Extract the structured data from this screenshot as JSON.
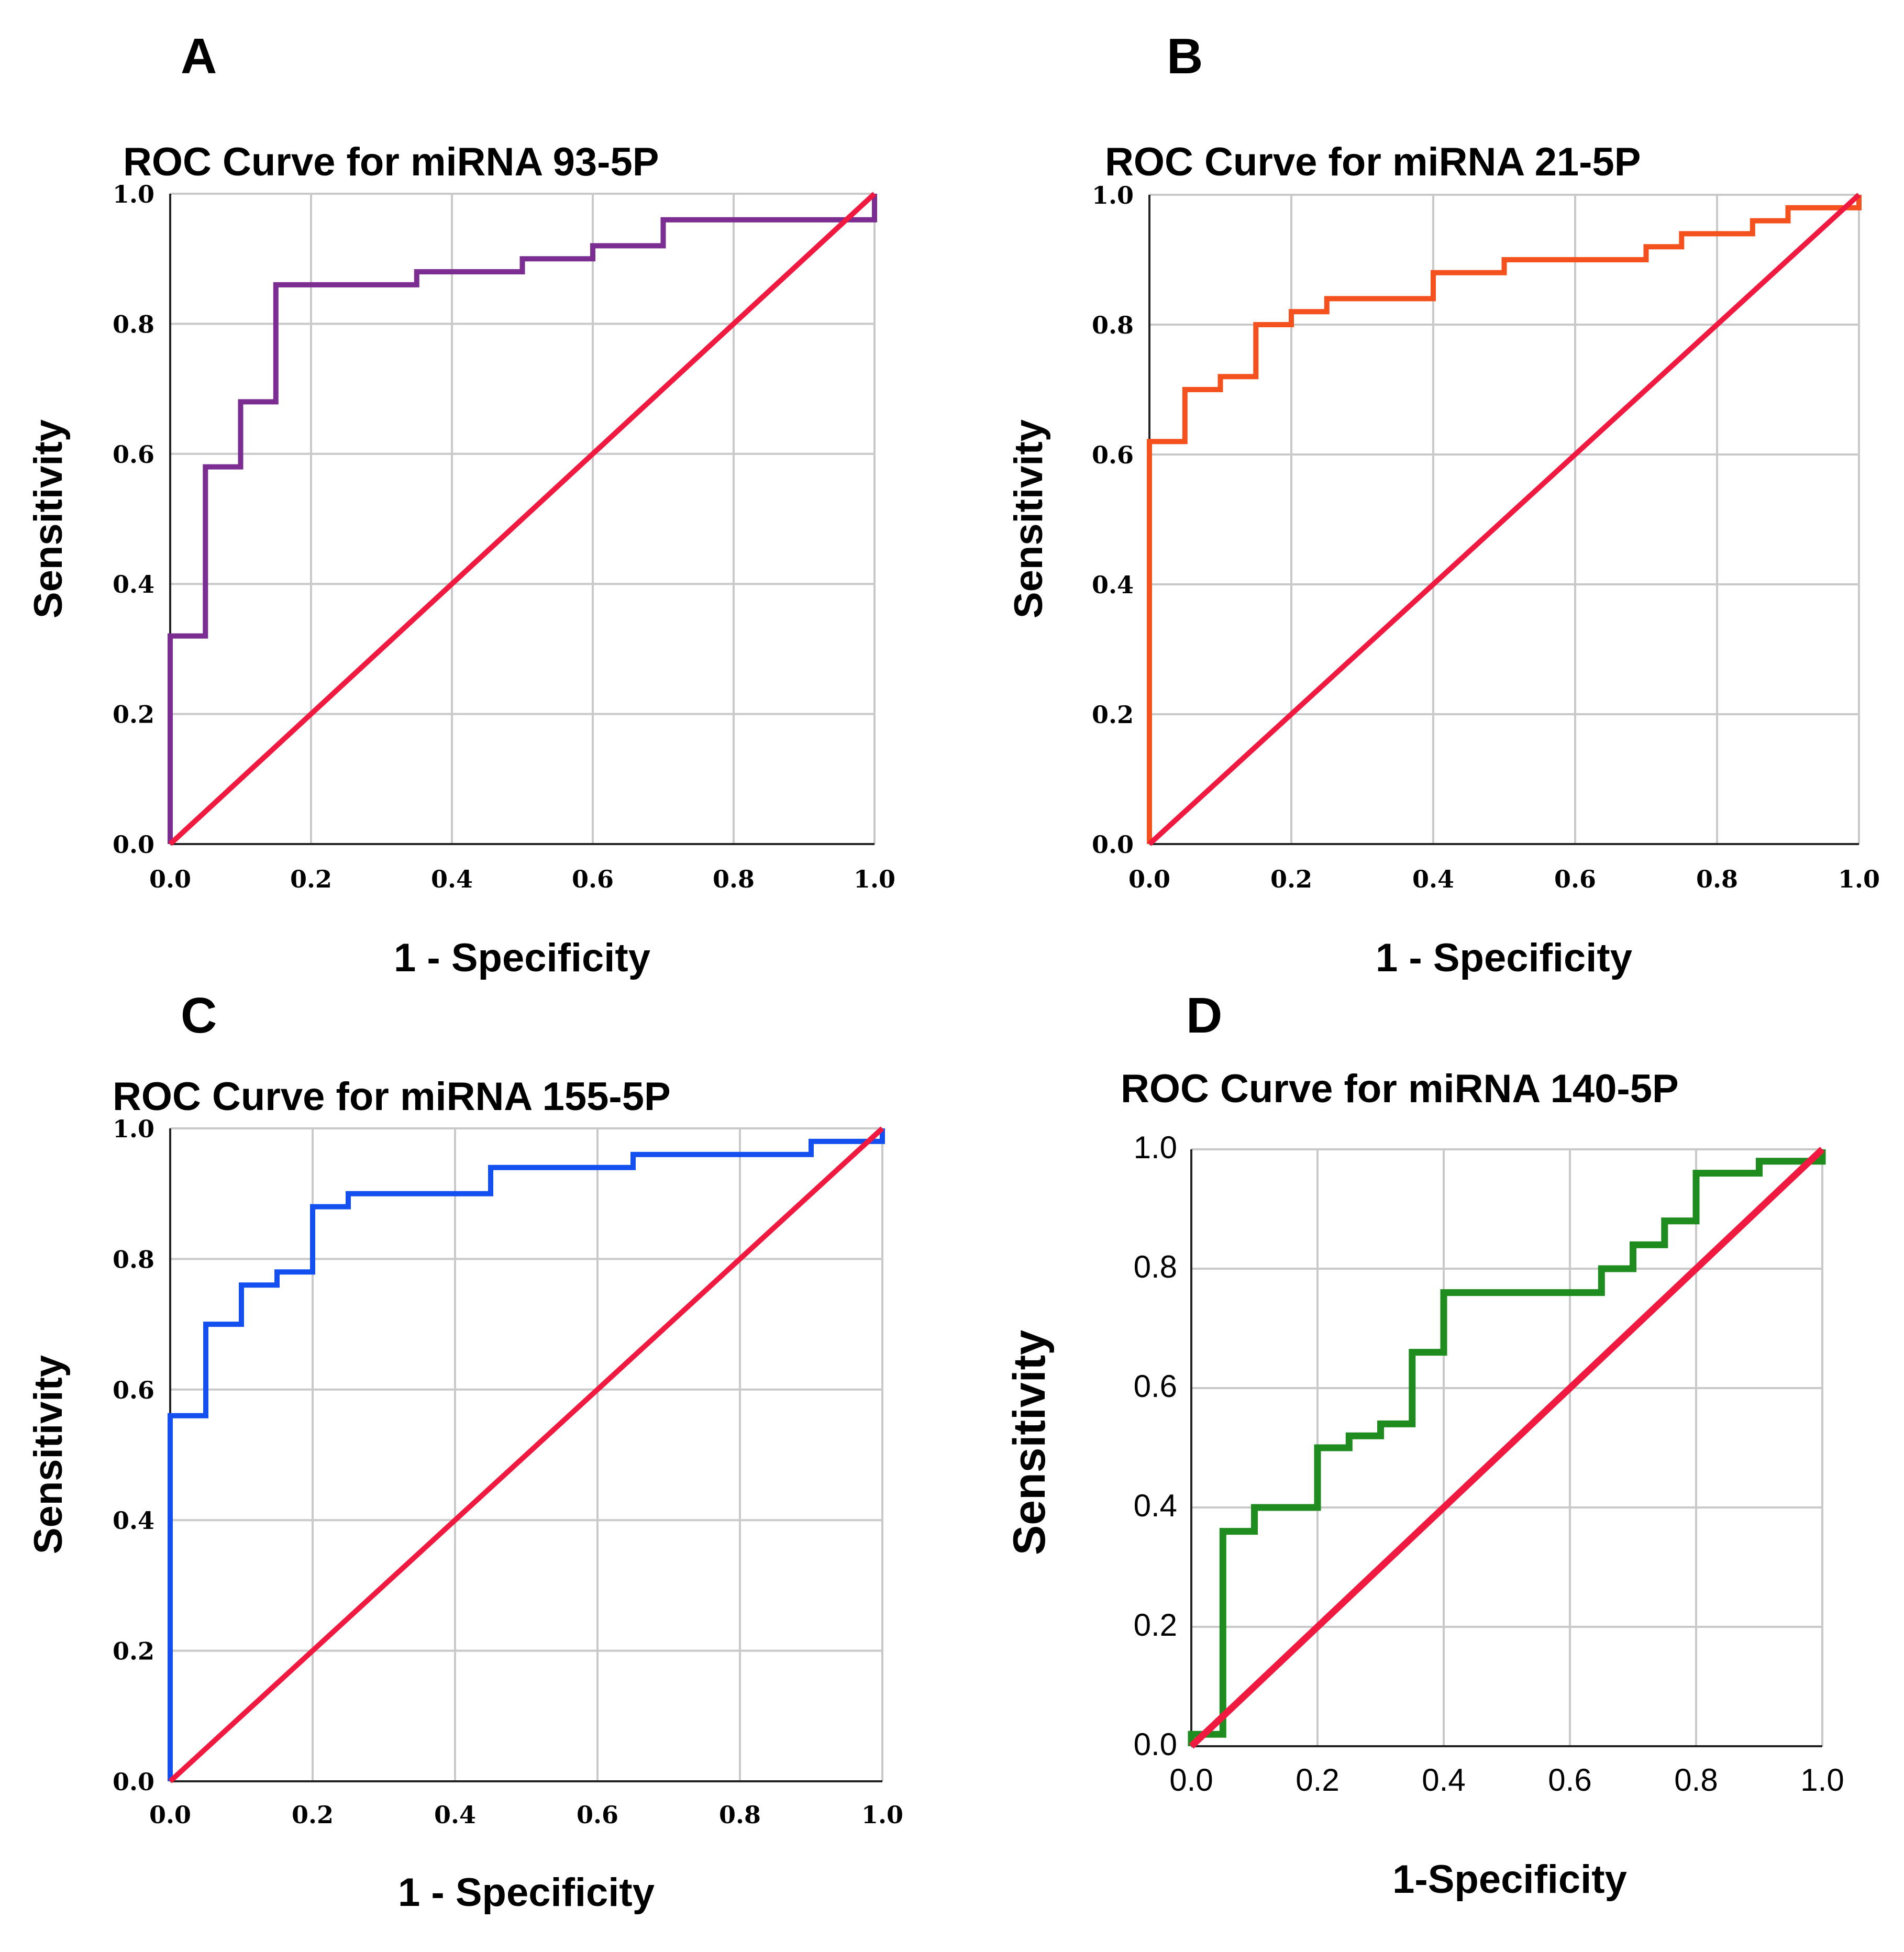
{
  "chart_data": [
    {
      "panel": "A",
      "type": "line",
      "title": "ROC Curve for miRNA 93-5P",
      "xlabel": "1 - Specificity",
      "ylabel": "Sensitivity",
      "xlim": [
        0,
        1
      ],
      "ylim": [
        0,
        1
      ],
      "x_ticks": [
        "0.0",
        "0.2",
        "0.4",
        "0.6",
        "0.8",
        "1.0"
      ],
      "y_ticks": [
        "0.0",
        "0.2",
        "0.4",
        "0.6",
        "0.8",
        "1.0"
      ],
      "grid": true,
      "series": [
        {
          "name": "miRNA 93-5P",
          "color": "#7B2D91",
          "x": [
            0,
            0,
            0.05,
            0.05,
            0.1,
            0.1,
            0.15,
            0.15,
            0.35,
            0.35,
            0.5,
            0.5,
            0.6,
            0.6,
            0.7,
            0.7,
            1.0,
            1.0
          ],
          "y": [
            0,
            0.32,
            0.32,
            0.58,
            0.58,
            0.68,
            0.68,
            0.86,
            0.86,
            0.88,
            0.88,
            0.9,
            0.9,
            0.92,
            0.92,
            0.96,
            0.96,
            1.0
          ]
        },
        {
          "name": "Reference line",
          "color": "#F0193F",
          "x": [
            0,
            1
          ],
          "y": [
            0,
            1
          ]
        }
      ]
    },
    {
      "panel": "B",
      "type": "line",
      "title": "ROC Curve for miRNA 21-5P",
      "xlabel": "1 - Specificity",
      "ylabel": "Sensitivity",
      "xlim": [
        0,
        1
      ],
      "ylim": [
        0,
        1
      ],
      "x_ticks": [
        "0.0",
        "0.2",
        "0.4",
        "0.6",
        "0.8",
        "1.0"
      ],
      "y_ticks": [
        "0.0",
        "0.2",
        "0.4",
        "0.6",
        "0.8",
        "1.0"
      ],
      "grid": true,
      "series": [
        {
          "name": "miRNA 21-5P",
          "color": "#F4511E",
          "x": [
            0,
            0,
            0.05,
            0.05,
            0.1,
            0.1,
            0.15,
            0.15,
            0.2,
            0.2,
            0.25,
            0.25,
            0.4,
            0.4,
            0.5,
            0.5,
            0.7,
            0.7,
            0.75,
            0.75,
            0.85,
            0.85,
            0.9,
            0.9,
            1.0,
            1.0
          ],
          "y": [
            0,
            0.62,
            0.62,
            0.7,
            0.7,
            0.72,
            0.72,
            0.8,
            0.8,
            0.82,
            0.82,
            0.84,
            0.84,
            0.88,
            0.88,
            0.9,
            0.9,
            0.92,
            0.92,
            0.94,
            0.94,
            0.96,
            0.96,
            0.98,
            0.98,
            1.0
          ]
        },
        {
          "name": "Reference line",
          "color": "#F0193F",
          "x": [
            0,
            1
          ],
          "y": [
            0,
            1
          ]
        }
      ]
    },
    {
      "panel": "C",
      "type": "line",
      "title": "ROC Curve for miRNA 155-5P",
      "xlabel": "1 - Specificity",
      "ylabel": "Sensitivity",
      "xlim": [
        0,
        1
      ],
      "ylim": [
        0,
        1
      ],
      "x_ticks": [
        "0.0",
        "0.2",
        "0.4",
        "0.6",
        "0.8",
        "1.0"
      ],
      "y_ticks": [
        "0.0",
        "0.2",
        "0.4",
        "0.6",
        "0.8",
        "1.0"
      ],
      "grid": true,
      "series": [
        {
          "name": "miRNA 155-5P",
          "color": "#1450F0",
          "x": [
            0,
            0,
            0.05,
            0.05,
            0.1,
            0.1,
            0.15,
            0.15,
            0.2,
            0.2,
            0.25,
            0.25,
            0.45,
            0.45,
            0.65,
            0.65,
            0.9,
            0.9,
            1.0,
            1.0
          ],
          "y": [
            0,
            0.56,
            0.56,
            0.7,
            0.7,
            0.76,
            0.76,
            0.78,
            0.78,
            0.88,
            0.88,
            0.9,
            0.9,
            0.94,
            0.94,
            0.96,
            0.96,
            0.98,
            0.98,
            1.0
          ]
        },
        {
          "name": "Reference line",
          "color": "#F0193F",
          "x": [
            0,
            1
          ],
          "y": [
            0,
            1
          ]
        }
      ]
    },
    {
      "panel": "D",
      "type": "line",
      "title": "ROC Curve for miRNA 140-5P",
      "xlabel": "1-Specificity",
      "ylabel": "Sensitivity",
      "xlim": [
        0,
        1
      ],
      "ylim": [
        0,
        1
      ],
      "x_ticks": [
        "0.0",
        "0.2",
        "0.4",
        "0.6",
        "0.8",
        "1.0"
      ],
      "y_ticks": [
        "0.0",
        "0.2",
        "0.4",
        "0.6",
        "0.8",
        "1.0"
      ],
      "grid": true,
      "series": [
        {
          "name": "miRNA 140-5P",
          "color": "#1E8C1E",
          "x": [
            0,
            0,
            0.05,
            0.05,
            0.1,
            0.1,
            0.2,
            0.2,
            0.25,
            0.25,
            0.3,
            0.3,
            0.35,
            0.35,
            0.4,
            0.4,
            0.65,
            0.65,
            0.7,
            0.7,
            0.75,
            0.75,
            0.8,
            0.8,
            0.9,
            0.9,
            1.0,
            1.0
          ],
          "y": [
            0,
            0.02,
            0.02,
            0.36,
            0.36,
            0.4,
            0.4,
            0.5,
            0.5,
            0.52,
            0.52,
            0.54,
            0.54,
            0.66,
            0.66,
            0.76,
            0.76,
            0.8,
            0.8,
            0.84,
            0.84,
            0.88,
            0.88,
            0.96,
            0.96,
            0.98,
            0.98,
            1.0
          ]
        },
        {
          "name": "Reference line",
          "color": "#F0193F",
          "x": [
            0,
            1
          ],
          "y": [
            0,
            1
          ]
        }
      ]
    }
  ]
}
